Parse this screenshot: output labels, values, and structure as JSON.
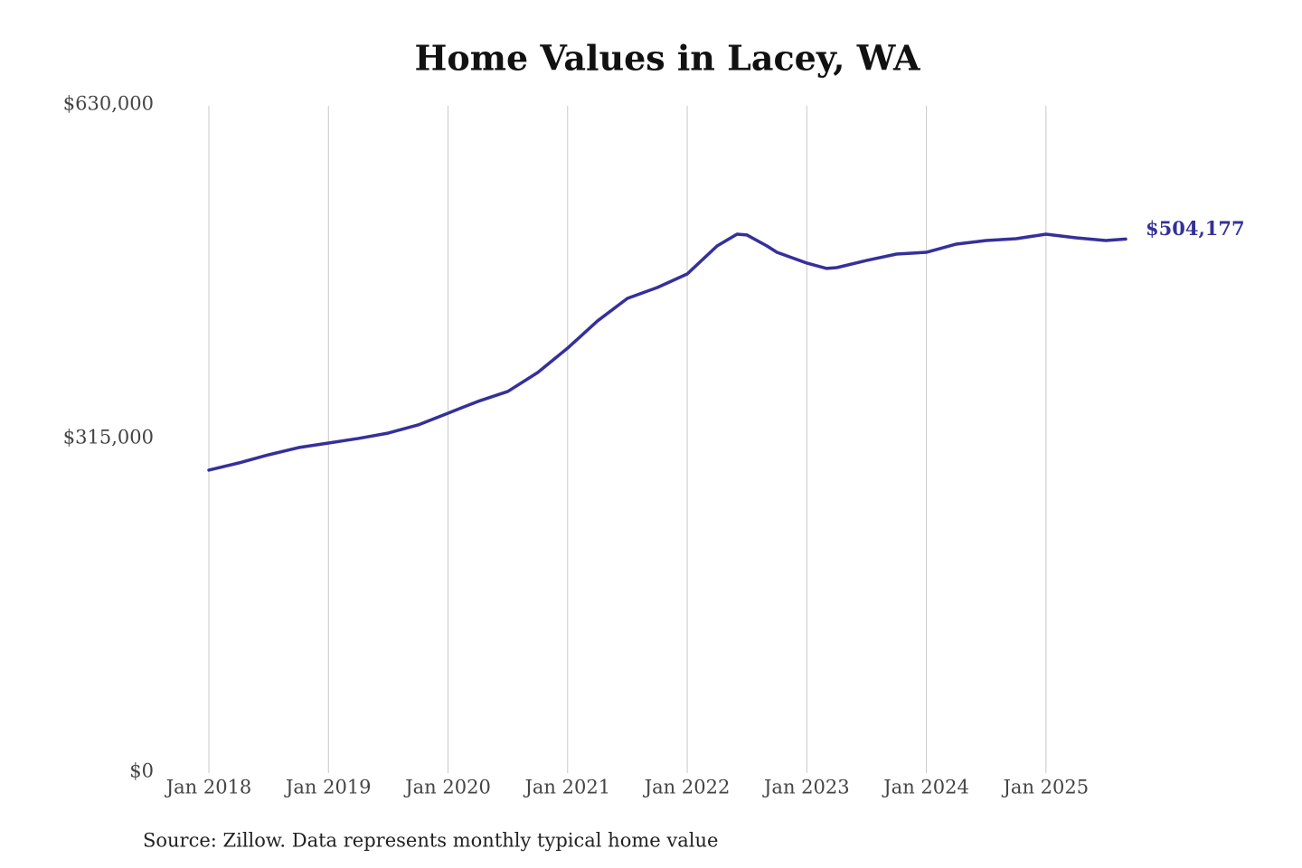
{
  "chart_data": {
    "type": "line",
    "title": "Home Values in Lacey, WA",
    "source": "Source: Zillow. Data represents monthly typical home value",
    "x": [
      "2018-01",
      "2018-04",
      "2018-07",
      "2018-10",
      "2019-01",
      "2019-04",
      "2019-07",
      "2019-10",
      "2020-01",
      "2020-04",
      "2020-07",
      "2020-10",
      "2021-01",
      "2021-04",
      "2021-07",
      "2021-10",
      "2022-01",
      "2022-04",
      "2022-06",
      "2022-07",
      "2022-09",
      "2022-10",
      "2023-01",
      "2023-03",
      "2023-04",
      "2023-07",
      "2023-10",
      "2024-01",
      "2024-04",
      "2024-07",
      "2024-10",
      "2025-01",
      "2025-04",
      "2025-07",
      "2025-09"
    ],
    "series": [
      {
        "name": "Lacey, WA",
        "color": "#35309a",
        "values": [
          286000,
          292800,
          300500,
          307300,
          311600,
          315900,
          321000,
          328700,
          339800,
          350900,
          360300,
          378200,
          401200,
          426900,
          448200,
          458400,
          471200,
          497700,
          508800,
          508000,
          497700,
          491700,
          481500,
          476400,
          477200,
          484000,
          490000,
          491700,
          499400,
          502800,
          504500,
          508800,
          505400,
          502800,
          504177
        ],
        "value_labels": [
          null,
          null,
          null,
          null,
          null,
          null,
          null,
          null,
          null,
          null,
          null,
          null,
          null,
          null,
          null,
          null,
          null,
          null,
          null,
          null,
          null,
          null,
          null,
          null,
          null,
          null,
          null,
          null,
          null,
          null,
          null,
          null,
          null,
          null,
          "$504,177"
        ]
      }
    ],
    "xlim": [
      "2018-01",
      "2025-09"
    ],
    "xticks": [
      {
        "value": "2018-01",
        "label": "Jan 2018"
      },
      {
        "value": "2019-01",
        "label": "Jan 2019"
      },
      {
        "value": "2020-01",
        "label": "Jan 2020"
      },
      {
        "value": "2021-01",
        "label": "Jan 2021"
      },
      {
        "value": "2022-01",
        "label": "Jan 2022"
      },
      {
        "value": "2023-01",
        "label": "Jan 2023"
      },
      {
        "value": "2024-01",
        "label": "Jan 2024"
      },
      {
        "value": "2025-01",
        "label": "Jan 2025"
      }
    ],
    "ylim": [
      0,
      630000
    ],
    "yticks": [
      {
        "value": 0,
        "label": "$0"
      },
      {
        "value": 315000,
        "label": "$315,000"
      },
      {
        "value": 630000,
        "label": "$630,000"
      }
    ],
    "grid": "x"
  }
}
